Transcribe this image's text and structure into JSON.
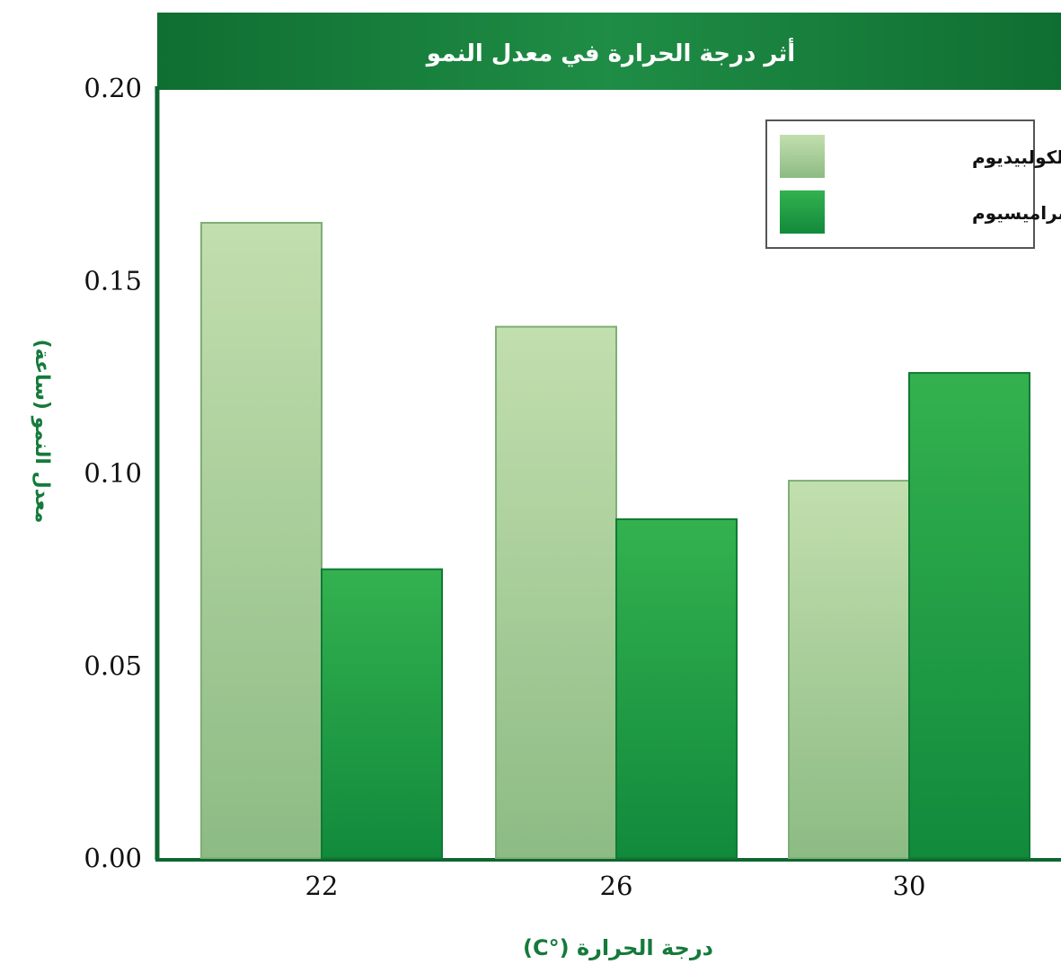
{
  "chart_data": {
    "type": "bar",
    "title": "أثر درجة الحرارة في معدل النمو",
    "xlabel": "درجة الحرارة (°C)",
    "ylabel": "معدل النمو (ساعة)",
    "categories": [
      "22",
      "26",
      "30"
    ],
    "series": [
      {
        "name": "الكولبيديوم",
        "values": [
          0.165,
          0.138,
          0.098
        ],
        "color": "#a9cf94"
      },
      {
        "name": "البراميسيوم",
        "values": [
          0.075,
          0.088,
          0.126
        ],
        "color": "#2fa04a"
      }
    ],
    "ylim": [
      0,
      0.2
    ],
    "yticks": [
      "0.00",
      "0.05",
      "0.10",
      "0.15",
      "0.20"
    ],
    "grid": false,
    "legend_position": "top-right",
    "colors": {
      "header_band": "#127a3a",
      "axis": "#0e6630",
      "title_text": "#ffffff",
      "axis_label_text": "#157a3b"
    }
  }
}
